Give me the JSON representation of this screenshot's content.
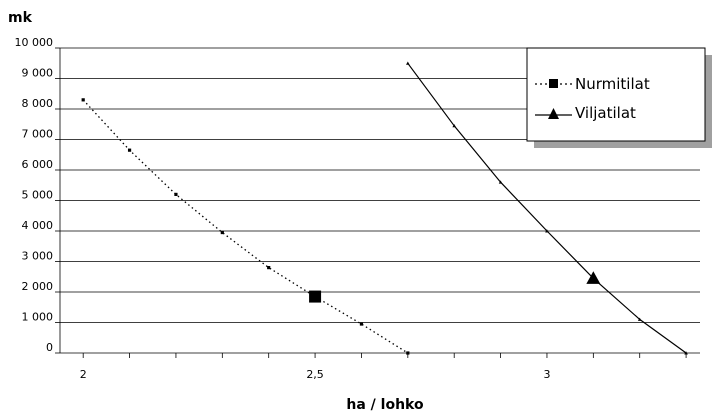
{
  "chart_data": {
    "type": "line",
    "ylabel": "mk",
    "xlabel": "ha / lohko",
    "xlim": [
      1.95,
      3.33
    ],
    "ylim": [
      0,
      10000
    ],
    "x_ticks": [
      2,
      2.5,
      3
    ],
    "x_tick_labels": [
      "2",
      "2,5",
      "3"
    ],
    "y_ticks": [
      0,
      1000,
      2000,
      3000,
      4000,
      5000,
      6000,
      7000,
      8000,
      9000,
      10000
    ],
    "y_tick_labels": [
      "0",
      "1 000",
      "2 000",
      "3 000",
      "4 000",
      "5 000",
      "6 000",
      "7 000",
      "8 000",
      "9 000",
      "10 000"
    ],
    "grid": "horizontal",
    "legend_position": "top-right",
    "series": [
      {
        "name": "Nurmitilat",
        "line_style": "dotted",
        "marker": "square",
        "highlight_index": 5,
        "x": [
          2.0,
          2.1,
          2.2,
          2.3,
          2.4,
          2.5,
          2.6,
          2.7
        ],
        "y": [
          8300,
          6650,
          5200,
          3950,
          2800,
          1850,
          950,
          0
        ]
      },
      {
        "name": "Viljatilat",
        "line_style": "solid",
        "marker": "triangle",
        "highlight_index": 4,
        "x": [
          2.7,
          2.8,
          2.9,
          3.0,
          3.1,
          3.2,
          3.3
        ],
        "y": [
          9500,
          7450,
          5600,
          4000,
          2450,
          1100,
          0
        ]
      }
    ]
  }
}
